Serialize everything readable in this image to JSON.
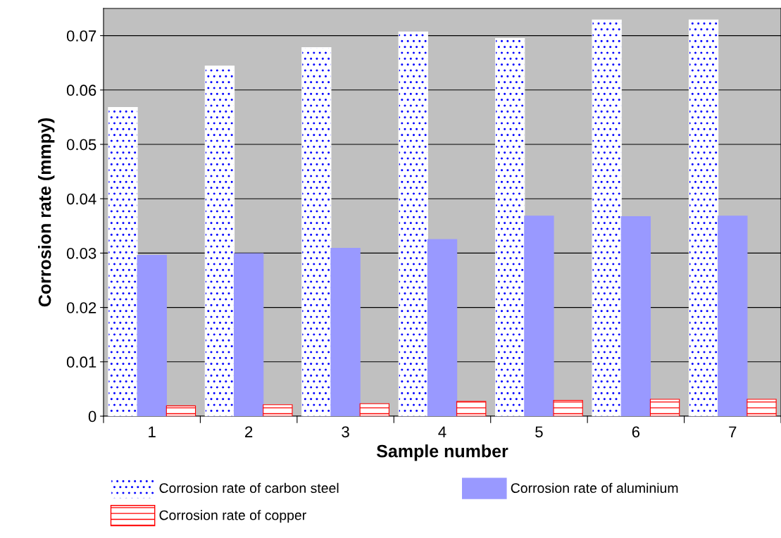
{
  "chart_data": {
    "type": "bar",
    "xlabel": "Sample number",
    "ylabel": "Corrosion rate (mmpy)",
    "categories": [
      "1",
      "2",
      "3",
      "4",
      "5",
      "6",
      "7"
    ],
    "series": [
      {
        "name": "Corrosion rate of carbon steel",
        "color": "#ffffff",
        "values": [
          0.0568,
          0.0644,
          0.0678,
          0.0707,
          0.0695,
          0.0729,
          0.0729
        ]
      },
      {
        "name": "Corrosion rate of aluminium",
        "color": "#9999ff",
        "values": [
          0.0296,
          0.0299,
          0.0309,
          0.0325,
          0.0368,
          0.0367,
          0.0368
        ]
      },
      {
        "name": "Corrosion rate of copper",
        "color": "#ff0000",
        "values": [
          0.0019,
          0.0021,
          0.0023,
          0.0027,
          0.0029,
          0.0031,
          0.0031
        ]
      }
    ],
    "ylim": [
      0,
      0.075
    ],
    "yticks": [
      0,
      0.01,
      0.02,
      0.03,
      0.04,
      0.05,
      0.06,
      0.07
    ],
    "grid": "y",
    "legend": "bottom"
  }
}
